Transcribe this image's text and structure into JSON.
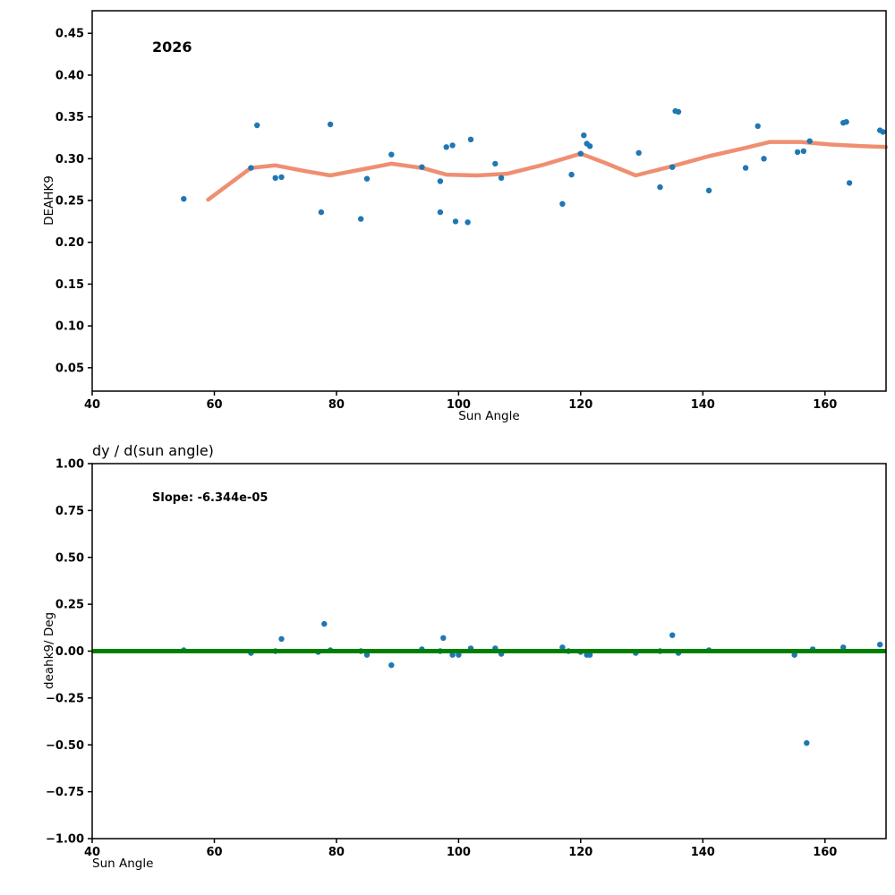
{
  "figure": {
    "background": "#ffffff",
    "scatter_color": "#1f77b4",
    "trend_color": "#ef8f72",
    "fit_color": "#008000"
  },
  "chart_data": [
    {
      "type": "scatter",
      "annotation": "2026",
      "xlabel": "Sun Angle",
      "ylabel": "DEAHK9",
      "xlim": [
        40,
        170
      ],
      "ylim": [
        0.022,
        0.477
      ],
      "grid": false,
      "legend": "none",
      "xticks": [
        40,
        60,
        80,
        100,
        120,
        140,
        160
      ],
      "xtick_labels": [
        "40",
        "60",
        "80",
        "100",
        "120",
        "140",
        "160"
      ],
      "yticks": [
        0.05,
        0.1,
        0.15,
        0.2,
        0.25,
        0.3,
        0.35,
        0.4,
        0.45
      ],
      "ytick_labels": [
        "0.05",
        "0.10",
        "0.15",
        "0.20",
        "0.25",
        "0.30",
        "0.35",
        "0.40",
        "0.45"
      ],
      "line_on_top": false,
      "scatter": {
        "name": "deahk9-data-point",
        "color": "#1f77b4",
        "radius": 3.2,
        "points": [
          [
            55,
            0.252
          ],
          [
            66,
            0.289
          ],
          [
            67,
            0.34
          ],
          [
            70,
            0.277
          ],
          [
            71,
            0.278
          ],
          [
            77.5,
            0.236
          ],
          [
            79,
            0.341
          ],
          [
            84,
            0.228
          ],
          [
            85,
            0.276
          ],
          [
            89,
            0.305
          ],
          [
            94,
            0.29
          ],
          [
            97,
            0.273
          ],
          [
            97,
            0.236
          ],
          [
            98,
            0.314
          ],
          [
            99,
            0.316
          ],
          [
            99.5,
            0.225
          ],
          [
            101.5,
            0.224
          ],
          [
            102,
            0.323
          ],
          [
            106,
            0.294
          ],
          [
            107,
            0.277
          ],
          [
            117,
            0.246
          ],
          [
            118.5,
            0.281
          ],
          [
            120,
            0.306
          ],
          [
            120.5,
            0.328
          ],
          [
            121,
            0.318
          ],
          [
            121.5,
            0.315
          ],
          [
            129.5,
            0.307
          ],
          [
            133,
            0.266
          ],
          [
            135,
            0.29
          ],
          [
            135.5,
            0.357
          ],
          [
            136,
            0.356
          ],
          [
            141,
            0.262
          ],
          [
            147,
            0.289
          ],
          [
            149,
            0.339
          ],
          [
            150,
            0.3
          ],
          [
            155.5,
            0.308
          ],
          [
            156.5,
            0.309
          ],
          [
            157.5,
            0.321
          ],
          [
            163,
            0.343
          ],
          [
            163.5,
            0.344
          ],
          [
            164,
            0.271
          ],
          [
            169,
            0.334
          ],
          [
            169.5,
            0.332
          ]
        ]
      },
      "line": {
        "name": "rolling-mean-line",
        "color": "#ef8f72",
        "width": 4.5,
        "points": [
          [
            59,
            0.251
          ],
          [
            66,
            0.289
          ],
          [
            70,
            0.292
          ],
          [
            75,
            0.285
          ],
          [
            79,
            0.28
          ],
          [
            84,
            0.287
          ],
          [
            89,
            0.294
          ],
          [
            94,
            0.289
          ],
          [
            98,
            0.281
          ],
          [
            103,
            0.28
          ],
          [
            108,
            0.282
          ],
          [
            114,
            0.293
          ],
          [
            120,
            0.306
          ],
          [
            124,
            0.295
          ],
          [
            129,
            0.28
          ],
          [
            135,
            0.291
          ],
          [
            141,
            0.303
          ],
          [
            147,
            0.313
          ],
          [
            151,
            0.32
          ],
          [
            156,
            0.32
          ],
          [
            161,
            0.317
          ],
          [
            166,
            0.315
          ],
          [
            170,
            0.314
          ]
        ]
      }
    },
    {
      "type": "scatter",
      "title": "dy / d(sun angle)",
      "annotation": "Slope: -6.344e-05",
      "xlabel": "Sun Angle",
      "ylabel": "deahk9/ Deg",
      "xlim": [
        40,
        170
      ],
      "ylim": [
        -1.0,
        1.0
      ],
      "grid": false,
      "legend": "none",
      "xticks": [
        40,
        60,
        80,
        100,
        120,
        140,
        160
      ],
      "xtick_labels": [
        "40",
        "60",
        "80",
        "100",
        "120",
        "140",
        "160"
      ],
      "yticks": [
        -1.0,
        -0.75,
        -0.5,
        -0.25,
        0.0,
        0.25,
        0.5,
        0.75,
        1.0
      ],
      "ytick_labels": [
        "−1.00",
        "−0.75",
        "−0.50",
        "−0.25",
        "0.00",
        "0.25",
        "0.50",
        "0.75",
        "1.00"
      ],
      "line_on_top": true,
      "scatter": {
        "name": "derivative-data-point",
        "color": "#1f77b4",
        "radius": 3.2,
        "points": [
          [
            55,
            0.005
          ],
          [
            66,
            -0.01
          ],
          [
            70,
            0
          ],
          [
            71,
            0.065
          ],
          [
            77,
            -0.005
          ],
          [
            78,
            0.145
          ],
          [
            79,
            0.005
          ],
          [
            84,
            0
          ],
          [
            85,
            -0.02
          ],
          [
            89,
            -0.075
          ],
          [
            94,
            0.01
          ],
          [
            97,
            0
          ],
          [
            97.5,
            0.07
          ],
          [
            99,
            -0.02
          ],
          [
            100,
            -0.02
          ],
          [
            102,
            0.015
          ],
          [
            106,
            0.015
          ],
          [
            107,
            -0.015
          ],
          [
            117,
            0.02
          ],
          [
            118,
            0
          ],
          [
            120,
            -0.005
          ],
          [
            121,
            -0.02
          ],
          [
            121.5,
            -0.02
          ],
          [
            129,
            -0.01
          ],
          [
            133,
            0
          ],
          [
            135,
            0.085
          ],
          [
            136,
            -0.01
          ],
          [
            141,
            0.005
          ],
          [
            155,
            -0.02
          ],
          [
            157,
            -0.49
          ],
          [
            158,
            0.01
          ],
          [
            163,
            0.02
          ],
          [
            169,
            0.035
          ]
        ]
      },
      "hline": {
        "name": "slope-fit-line",
        "y": 0.0,
        "color": "#008000",
        "width": 5
      }
    }
  ]
}
